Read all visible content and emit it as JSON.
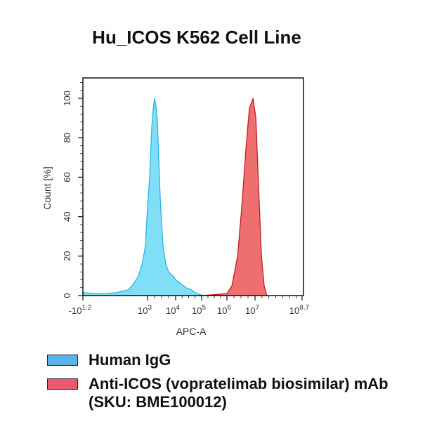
{
  "chart_data": {
    "type": "area",
    "title": "Hu_ICOS K562 Cell Line",
    "xlabel": "APC-A",
    "ylabel": "Count [%]",
    "x_scale": "biexponential (log10)",
    "ylim": [
      0,
      110
    ],
    "grid": false,
    "x_ticks": [
      {
        "value": -1.2,
        "base": "-10",
        "exp": "1.2"
      },
      {
        "value": 3,
        "base": "10",
        "exp": "3"
      },
      {
        "value": 4,
        "base": "10",
        "exp": "4"
      },
      {
        "value": 5,
        "base": "10",
        "exp": "5"
      },
      {
        "value": 6,
        "base": "10",
        "exp": "6"
      },
      {
        "value": 7,
        "base": "10",
        "exp": "7"
      },
      {
        "value": 8.7,
        "base": "10",
        "exp": "8.7"
      }
    ],
    "y_ticks": [
      "0",
      "20",
      "40",
      "60",
      "80",
      "100"
    ],
    "legend_position": "bottom",
    "series": [
      {
        "name": "Human IgG",
        "fill": "#80def7",
        "stroke": "#2bb5e0",
        "legend_color": "#56b4e6",
        "x_log10": [
          -1.2,
          -0.5,
          0.3,
          1.0,
          1.77,
          2.1,
          2.41,
          2.65,
          2.86,
          3.0,
          3.075,
          3.15,
          3.2,
          3.25,
          3.3,
          3.35,
          3.45,
          3.55,
          3.65,
          3.75,
          3.9,
          4.0,
          4.2,
          4.4,
          4.6,
          4.81,
          5.0,
          5.08
        ],
        "y": [
          1.5,
          1,
          1,
          1.5,
          3,
          6,
          10,
          16,
          25,
          45,
          60,
          85,
          94,
          100,
          96,
          88,
          50,
          25,
          16,
          12,
          10,
          8,
          6,
          4,
          3,
          1,
          0.3,
          0
        ]
      },
      {
        "name": "Anti-ICOS (vopratelimab biosimilar) mAb (SKU: BME100012)",
        "fill": "#ef6f6f",
        "stroke": "#c01f25",
        "legend_color": "#ea5a6a",
        "x_log10": [
          5.0,
          5.5,
          6.0,
          6.18,
          6.38,
          6.53,
          6.68,
          6.8,
          6.93,
          7.03,
          7.13,
          7.23,
          7.33,
          7.43
        ],
        "y": [
          0,
          0.5,
          1,
          5,
          20,
          45,
          75,
          95,
          100,
          90,
          55,
          20,
          5,
          0
        ]
      }
    ]
  }
}
